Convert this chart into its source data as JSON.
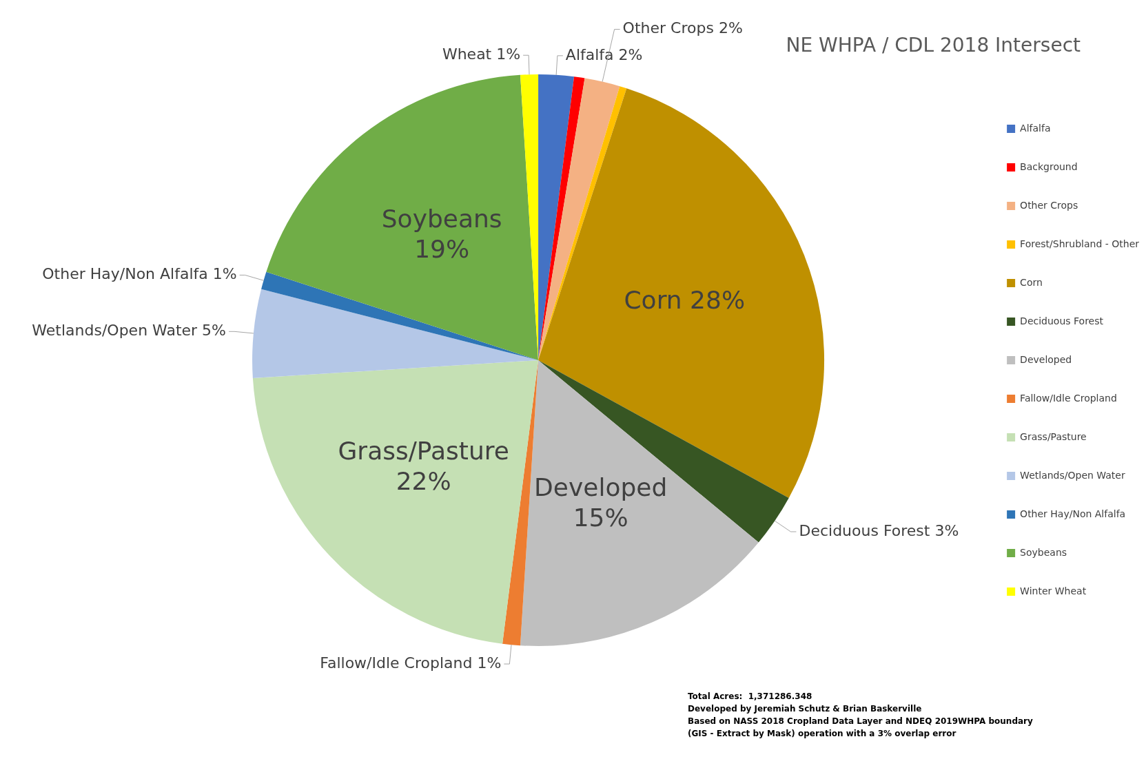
{
  "chart_data": {
    "type": "pie",
    "title": "NE WHPA / CDL 2018 Intersect",
    "categories": [
      "Alfalfa",
      "Background",
      "Other Crops",
      "Forest/Shrubland - Other",
      "Corn",
      "Deciduous Forest",
      "Developed",
      "Fallow/Idle Cropland",
      "Grass/Pasture",
      "Wetlands/Open Water",
      "Other Hay/Non Alfalfa",
      "Soybeans",
      "Winter Wheat"
    ],
    "values": [
      2,
      0.6,
      2,
      0.4,
      28,
      3,
      15,
      1,
      22,
      5,
      1,
      19,
      1
    ],
    "colors": [
      "#4472c4",
      "#ff0000",
      "#f4b183",
      "#ffc000",
      "#bf9000",
      "#375623",
      "#bfbfbf",
      "#ed7d31",
      "#c5e0b4",
      "#b4c7e7",
      "#2e75b6",
      "#70ad47",
      "#ffff00"
    ],
    "value_labels": [
      "Alfalfa 2%",
      null,
      "Other Crops 2%",
      null,
      "Corn 28%",
      "Deciduous Forest 3%",
      "Developed 15%",
      "Fallow/Idle Cropland 1%",
      "Grass/Pasture 22%",
      "Wetlands/Open Water 5%",
      "Other Hay/Non Alfalfa 1%",
      "Soybeans 19%",
      "Wheat 1%"
    ],
    "legend": "right",
    "annotations": [
      "Total Acres:  1,371286.348",
      "Developed by Jeremiah Schutz & Brian Baskerville",
      "Based on NASS 2018 Cropland Data Layer and NDEQ 2019WHPA boundary",
      "(GIS - Extract by Mask) operation with a 3% overlap error"
    ]
  }
}
